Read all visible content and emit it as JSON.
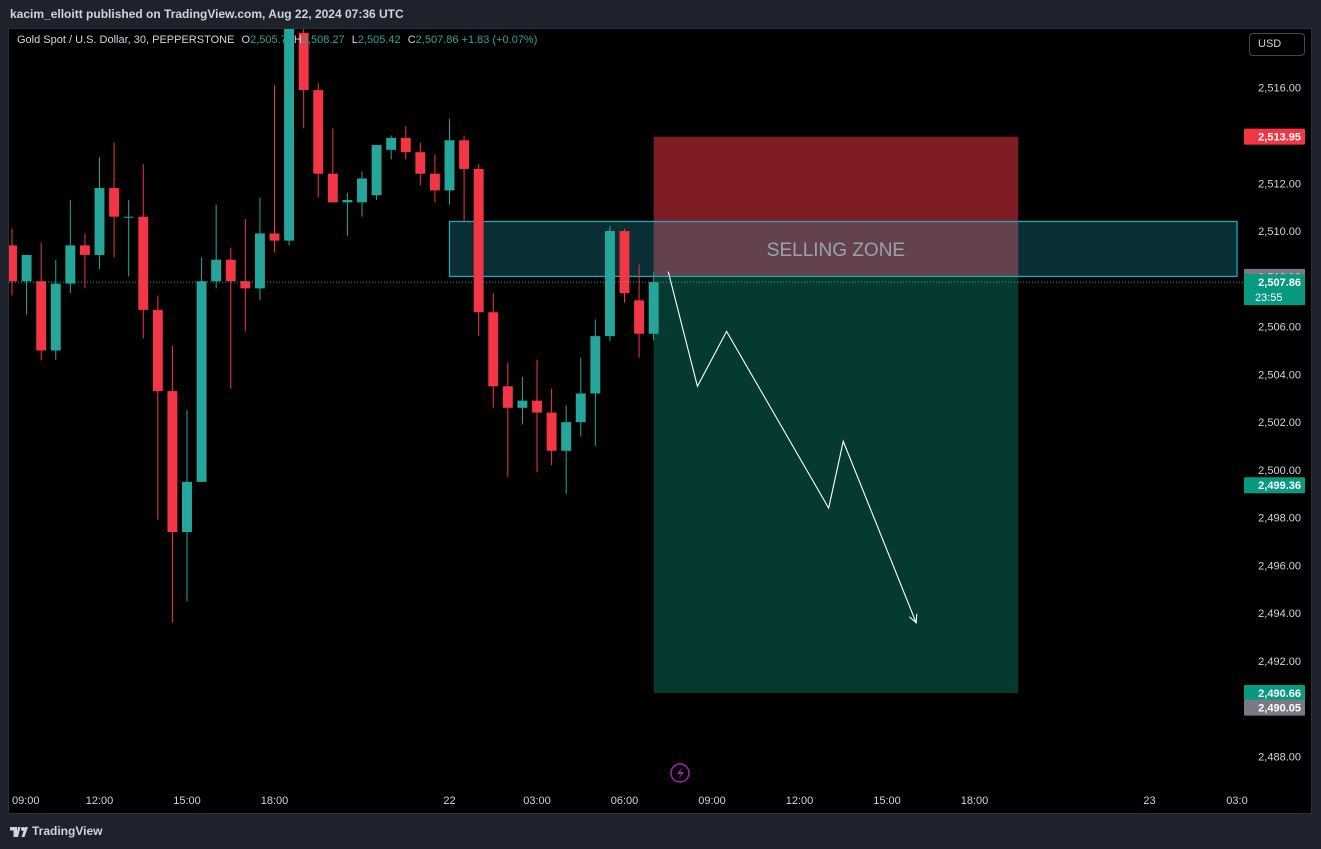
{
  "header": {
    "publisher_line": "kacim_elloitt published on TradingView.com, Aug 22, 2024 07:36 UTC"
  },
  "legend": {
    "symbol": "Gold Spot / U.S. Dollar, 30, PEPPERSTONE",
    "open_key": "O",
    "open": "2,505.7",
    "high_key": "H",
    "high": "2,508.27",
    "low_key": "L",
    "low": "2,505.42",
    "close_key": "C",
    "close": "2,507.86",
    "change": "+1.83 (+0.07%)"
  },
  "currency": "USD",
  "footer": {
    "brand": "TradingView"
  },
  "chart_data": {
    "type": "candlestick",
    "interval_minutes": 30,
    "colors": {
      "up": "#26a69a",
      "down": "#f23645",
      "drawing": "#ffffff"
    },
    "y_range": [
      2486.6,
      2518.5
    ],
    "y_ticks": [
      2488,
      2490,
      2492,
      2494,
      2496,
      2498,
      2500,
      2502,
      2504,
      2506,
      2508,
      2510,
      2512,
      2514,
      2516
    ],
    "y_tick_labels": [
      "2,488.00",
      "2,490.00",
      "2,492.00",
      "2,494.00",
      "2,496.00",
      "2,498.00",
      "2,500.00",
      "2,502.00",
      "2,504.00",
      "2,506.00",
      "2,508.00",
      "2,510.00",
      "2,512.00",
      "2,514.00",
      "2,516.00"
    ],
    "x_start": "2024-08-21 09:00",
    "x_end": "2024-08-23 03:00",
    "x_ticks": [
      {
        "t": "2024-08-21 09:00",
        "label": "09:00"
      },
      {
        "t": "2024-08-21 12:00",
        "label": "12:00"
      },
      {
        "t": "2024-08-21 15:00",
        "label": "15:00"
      },
      {
        "t": "2024-08-21 18:00",
        "label": "18:00"
      },
      {
        "t": "2024-08-22 00:00",
        "label": "22"
      },
      {
        "t": "2024-08-22 03:00",
        "label": "03:00"
      },
      {
        "t": "2024-08-22 06:00",
        "label": "06:00"
      },
      {
        "t": "2024-08-22 09:00",
        "label": "09:00"
      },
      {
        "t": "2024-08-22 12:00",
        "label": "12:00"
      },
      {
        "t": "2024-08-22 15:00",
        "label": "15:00"
      },
      {
        "t": "2024-08-22 18:00",
        "label": "18:00"
      },
      {
        "t": "2024-08-23 00:00",
        "label": "23"
      },
      {
        "t": "2024-08-23 03:00",
        "label": "03:0"
      }
    ],
    "candles": [
      {
        "t": "2024-08-21 09:00",
        "o": 2509.4,
        "h": 2510.1,
        "l": 2507.3,
        "c": 2507.9
      },
      {
        "t": "2024-08-21 09:30",
        "o": 2507.9,
        "h": 2509.0,
        "l": 2506.5,
        "c": 2509.0
      },
      {
        "t": "2024-08-21 10:00",
        "o": 2507.9,
        "h": 2509.5,
        "l": 2504.6,
        "c": 2505.0
      },
      {
        "t": "2024-08-21 10:30",
        "o": 2505.0,
        "h": 2508.8,
        "l": 2504.6,
        "c": 2507.8
      },
      {
        "t": "2024-08-21 11:00",
        "o": 2507.8,
        "h": 2511.3,
        "l": 2507.4,
        "c": 2509.4
      },
      {
        "t": "2024-08-21 11:30",
        "o": 2509.4,
        "h": 2509.9,
        "l": 2507.6,
        "c": 2509.0
      },
      {
        "t": "2024-08-21 12:00",
        "o": 2509.0,
        "h": 2513.1,
        "l": 2508.4,
        "c": 2511.8
      },
      {
        "t": "2024-08-21 12:30",
        "o": 2511.8,
        "h": 2513.7,
        "l": 2508.9,
        "c": 2510.6
      },
      {
        "t": "2024-08-21 13:00",
        "o": 2510.6,
        "h": 2511.3,
        "l": 2508.1,
        "c": 2510.6
      },
      {
        "t": "2024-08-21 13:30",
        "o": 2510.6,
        "h": 2512.8,
        "l": 2505.5,
        "c": 2506.7
      },
      {
        "t": "2024-08-21 14:00",
        "o": 2506.7,
        "h": 2507.3,
        "l": 2497.9,
        "c": 2503.3
      },
      {
        "t": "2024-08-21 14:30",
        "o": 2503.3,
        "h": 2505.2,
        "l": 2493.6,
        "c": 2497.4
      },
      {
        "t": "2024-08-21 15:00",
        "o": 2497.4,
        "h": 2502.5,
        "l": 2494.5,
        "c": 2499.5
      },
      {
        "t": "2024-08-21 15:30",
        "o": 2499.5,
        "h": 2508.9,
        "l": 2499.5,
        "c": 2507.9
      },
      {
        "t": "2024-08-21 16:00",
        "o": 2507.9,
        "h": 2511.1,
        "l": 2507.6,
        "c": 2508.8
      },
      {
        "t": "2024-08-21 16:30",
        "o": 2508.8,
        "h": 2509.3,
        "l": 2503.4,
        "c": 2507.9
      },
      {
        "t": "2024-08-21 17:00",
        "o": 2507.9,
        "h": 2510.5,
        "l": 2505.8,
        "c": 2507.6
      },
      {
        "t": "2024-08-21 17:30",
        "o": 2507.6,
        "h": 2511.4,
        "l": 2507.1,
        "c": 2509.9
      },
      {
        "t": "2024-08-21 18:00",
        "o": 2509.9,
        "h": 2516.1,
        "l": 2509.1,
        "c": 2509.6
      },
      {
        "t": "2024-08-21 18:30",
        "o": 2509.6,
        "h": 2518.5,
        "l": 2509.4,
        "c": 2518.5
      },
      {
        "t": "2024-08-21 19:00",
        "o": 2518.3,
        "h": 2518.5,
        "l": 2514.3,
        "c": 2515.9
      },
      {
        "t": "2024-08-21 19:30",
        "o": 2515.9,
        "h": 2516.2,
        "l": 2511.4,
        "c": 2512.4
      },
      {
        "t": "2024-08-21 20:00",
        "o": 2512.4,
        "h": 2514.3,
        "l": 2511.3,
        "c": 2511.2
      },
      {
        "t": "2024-08-21 20:30",
        "o": 2511.2,
        "h": 2511.6,
        "l": 2509.8,
        "c": 2511.3
      },
      {
        "t": "2024-08-21 21:00",
        "o": 2511.2,
        "h": 2512.5,
        "l": 2510.6,
        "c": 2512.2
      },
      {
        "t": "2024-08-21 21:30",
        "o": 2511.5,
        "h": 2513.6,
        "l": 2511.3,
        "c": 2513.6
      },
      {
        "t": "2024-08-21 22:00",
        "o": 2513.4,
        "h": 2514.0,
        "l": 2513.0,
        "c": 2513.9
      },
      {
        "t": "2024-08-21 22:30",
        "o": 2513.9,
        "h": 2514.4,
        "l": 2513.0,
        "c": 2513.3
      },
      {
        "t": "2024-08-21 23:00",
        "o": 2513.3,
        "h": 2513.7,
        "l": 2511.9,
        "c": 2512.4
      },
      {
        "t": "2024-08-21 23:30",
        "o": 2512.4,
        "h": 2513.2,
        "l": 2511.2,
        "c": 2511.7
      },
      {
        "t": "2024-08-22 00:00",
        "o": 2511.7,
        "h": 2514.7,
        "l": 2511.1,
        "c": 2513.8
      },
      {
        "t": "2024-08-22 00:30",
        "o": 2513.8,
        "h": 2514.0,
        "l": 2510.4,
        "c": 2512.6
      },
      {
        "t": "2024-08-22 01:00",
        "o": 2512.6,
        "h": 2512.8,
        "l": 2505.6,
        "c": 2506.6
      },
      {
        "t": "2024-08-22 01:30",
        "o": 2506.6,
        "h": 2507.4,
        "l": 2502.6,
        "c": 2503.5
      },
      {
        "t": "2024-08-22 02:00",
        "o": 2503.5,
        "h": 2504.5,
        "l": 2499.7,
        "c": 2502.6
      },
      {
        "t": "2024-08-22 02:30",
        "o": 2502.6,
        "h": 2503.9,
        "l": 2501.9,
        "c": 2502.9
      },
      {
        "t": "2024-08-22 03:00",
        "o": 2502.9,
        "h": 2504.6,
        "l": 2499.9,
        "c": 2502.4
      },
      {
        "t": "2024-08-22 03:30",
        "o": 2502.4,
        "h": 2503.4,
        "l": 2500.2,
        "c": 2500.8
      },
      {
        "t": "2024-08-22 04:00",
        "o": 2500.8,
        "h": 2502.7,
        "l": 2499.0,
        "c": 2502.0
      },
      {
        "t": "2024-08-22 04:30",
        "o": 2502.0,
        "h": 2504.7,
        "l": 2501.4,
        "c": 2503.2
      },
      {
        "t": "2024-08-22 05:00",
        "o": 2503.2,
        "h": 2506.3,
        "l": 2501.0,
        "c": 2505.6
      },
      {
        "t": "2024-08-22 05:30",
        "o": 2505.6,
        "h": 2510.2,
        "l": 2505.4,
        "c": 2510.0
      },
      {
        "t": "2024-08-22 06:00",
        "o": 2510.0,
        "h": 2510.1,
        "l": 2507.0,
        "c": 2507.4
      },
      {
        "t": "2024-08-22 06:30",
        "o": 2507.1,
        "h": 2508.6,
        "l": 2504.7,
        "c": 2505.7
      },
      {
        "t": "2024-08-22 07:00",
        "o": 2505.7,
        "h": 2508.27,
        "l": 2505.42,
        "c": 2507.86
      }
    ],
    "last_price": {
      "value": "2,507.86",
      "countdown": "23:55",
      "color": "#089981"
    },
    "price_labels": [
      {
        "value": 2513.95,
        "text": "2,513.95",
        "color": "#f23645"
      },
      {
        "value": 2508.08,
        "text": "2,508.08",
        "color": "#787b86"
      },
      {
        "value": 2499.36,
        "text": "2,499.36",
        "color": "#089981"
      },
      {
        "value": 2490.66,
        "text": "2,490.66",
        "color": "#089981"
      },
      {
        "value": 2490.05,
        "text": "2,490.05",
        "color": "#787b86"
      }
    ],
    "short_position": {
      "t_start": "2024-08-22 07:00",
      "t_end": "2024-08-22 19:30",
      "stop": 2513.95,
      "entry": 2508.08,
      "target": 2490.66,
      "stop_color": "#7f1d24",
      "target_color": "#053a31"
    },
    "zone": {
      "label": "SELLING ZONE",
      "t_start": "2024-08-22 00:00",
      "t_end": "2024-08-23 03:00",
      "top": 2510.4,
      "bottom": 2508.1,
      "color": "#22a6b8"
    },
    "path_arrow": [
      {
        "t": "2024-08-22 07:30",
        "v": 2508.3
      },
      {
        "t": "2024-08-22 08:30",
        "v": 2503.5
      },
      {
        "t": "2024-08-22 09:30",
        "v": 2505.8
      },
      {
        "t": "2024-08-22 13:00",
        "v": 2498.4
      },
      {
        "t": "2024-08-22 13:30",
        "v": 2501.2
      },
      {
        "t": "2024-08-22 16:00",
        "v": 2493.6
      }
    ]
  }
}
